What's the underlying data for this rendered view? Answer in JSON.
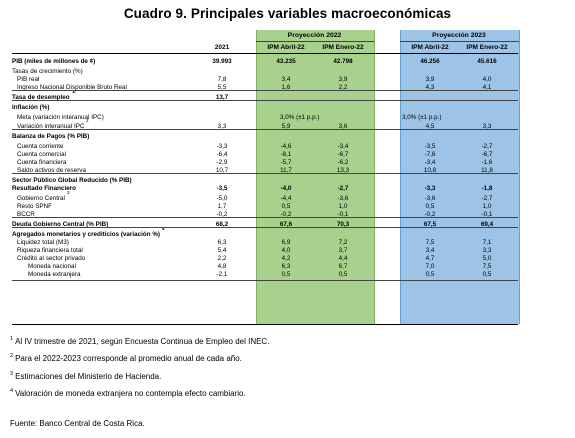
{
  "title": "Cuadro 9. Principales variables macroeconómicas",
  "headers": {
    "group_2022": "Proyección 2022",
    "group_2023": "Proyección 2023",
    "col_2021": "2021",
    "col_ipm_abril_22": "IPM Abril-22",
    "col_ipm_enero_22": "IPM Enero-22",
    "col_ipm_abril_23": "IPM Abril-22",
    "col_ipm_enero_23": "IPM Enero-22"
  },
  "rows": [
    {
      "label": "PIB (miles de millones de ¢)",
      "bold": true,
      "v": [
        "39.993",
        "43.235",
        "42.798",
        "46.256",
        "45.616"
      ]
    },
    {
      "label": "Tasas de crecimiento (%)",
      "bold": false,
      "v": [
        "",
        "",
        "",
        "",
        ""
      ]
    },
    {
      "label": "PIB real",
      "bold": false,
      "indent": true,
      "v": [
        "7,8",
        "3,4",
        "3,9",
        "3,9",
        "4,0"
      ]
    },
    {
      "label": "Ingreso Nacional Disponible Bruto Real",
      "bold": false,
      "indent": true,
      "v": [
        "5,5",
        "1,6",
        "2,2",
        "4,3",
        "4,1"
      ]
    },
    {
      "label": "Tasa de desempleo",
      "sup": "1/",
      "bold": true,
      "v": [
        "13,7",
        "",
        "",
        "",
        ""
      ]
    },
    {
      "label": "Inflación (%)",
      "bold": true,
      "v": [
        "",
        "",
        "",
        "",
        ""
      ]
    },
    {
      "label": "Meta (variación interanual IPC)",
      "bold": false,
      "indent": true,
      "span": [
        "3,0% (±1 p.p.)",
        "3,0% (±1 p.p.)"
      ]
    },
    {
      "label": "Variación interanual IPC",
      "sup": "2",
      "bold": false,
      "indent": true,
      "v": [
        "3,3",
        "5,9",
        "3,6",
        "4,5",
        "3,3"
      ]
    },
    {
      "label": "Balanza de Pagos (% PIB)",
      "bold": true,
      "v": [
        "",
        "",
        "",
        "",
        ""
      ]
    },
    {
      "label": "Cuenta corriente",
      "bold": false,
      "indent": true,
      "v": [
        "-3,3",
        "-4,6",
        "-3,4",
        "-3,5",
        "-2,7"
      ]
    },
    {
      "label": "Cuenta comercial",
      "bold": false,
      "indent": true,
      "v": [
        "-6,4",
        "-8,1",
        "-6,7",
        "-7,6",
        "-6,7"
      ]
    },
    {
      "label": "Cuenta financiera",
      "bold": false,
      "indent": true,
      "v": [
        "-2,9",
        "-5,7",
        "-6,2",
        "-3,4",
        "-1,6"
      ]
    },
    {
      "label": "Saldo activos de reserva",
      "bold": false,
      "indent": true,
      "v": [
        "10,7",
        "11,7",
        "13,3",
        "10,8",
        "11,8"
      ]
    },
    {
      "label": "Sector Público Global Reducido (% PIB)",
      "bold": true,
      "v": [
        "",
        "",
        "",
        "",
        ""
      ]
    },
    {
      "label": "Resultado Financiero",
      "bold": true,
      "v": [
        "-3,5",
        "-4,0",
        "-2,7",
        "-3,3",
        "-1,8"
      ]
    },
    {
      "label": "Gobierno Central",
      "sup": "3",
      "bold": false,
      "indent": true,
      "v": [
        "-5,0",
        "-4,4",
        "-3,6",
        "-3,6",
        "-2,7"
      ]
    },
    {
      "label": "Resto SPNF",
      "bold": false,
      "indent": true,
      "v": [
        "1,7",
        "0,5",
        "1,0",
        "0,5",
        "1,0"
      ]
    },
    {
      "label": "BCCR",
      "bold": false,
      "indent": true,
      "v": [
        "-0,2",
        "-0,2",
        "-0,1",
        "-0,2",
        "-0,1"
      ]
    },
    {
      "label": "Deuda Gobierno Central (% PIB)",
      "bold": true,
      "v": [
        "68,2",
        "67,6",
        "70,3",
        "67,5",
        "69,4"
      ]
    },
    {
      "label": "Agregados monetarios y crediticios (variación %)",
      "sup": "4",
      "bold": true,
      "v": [
        "",
        "",
        "",
        "",
        ""
      ]
    },
    {
      "label": "Liquidez total (M3)",
      "bold": false,
      "indent": true,
      "v": [
        "6,3",
        "6,9",
        "7,2",
        "7,5",
        "7,1"
      ]
    },
    {
      "label": "Riqueza financiera total",
      "bold": false,
      "indent": true,
      "v": [
        "5,4",
        "4,0",
        "3,7",
        "3,4",
        "3,3"
      ]
    },
    {
      "label": "Crédito al sector privado",
      "bold": false,
      "indent": true,
      "v": [
        "2,2",
        "4,2",
        "4,4",
        "4,7",
        "5,0"
      ]
    },
    {
      "label": "Moneda nacional",
      "bold": false,
      "indent2": true,
      "v": [
        "4,8",
        "6,3",
        "6,7",
        "7,0",
        "7,5"
      ]
    },
    {
      "label": "Moneda extranjera",
      "bold": false,
      "indent2": true,
      "v": [
        "-2,1",
        "0,5",
        "0,5",
        "0,5",
        "0,5"
      ]
    }
  ],
  "footnotes": [
    {
      "mark": "1",
      "text": "Al IV trimestre  de 2021, según Encuesta Continua de Empleo del INEC."
    },
    {
      "mark": "2",
      "text": "Para el 2022-2023 corresponde al promedio anual de cada año."
    },
    {
      "mark": "3",
      "text": "Estimaciones del Ministerio de Hacienda."
    },
    {
      "mark": "4",
      "text": "Valoración de moneda extranjera no contempla efecto cambiario."
    }
  ],
  "source": "Fuente: Banco Central de Costa Rica."
}
